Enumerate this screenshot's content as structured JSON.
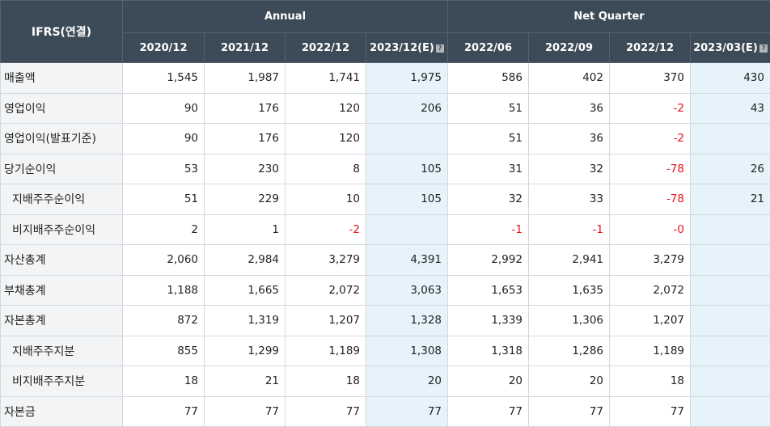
{
  "table": {
    "corner_label": "IFRS(연결)",
    "groups": {
      "annual": "Annual",
      "quarter": "Net Quarter"
    },
    "columns": [
      {
        "label": "2020/12",
        "est": false
      },
      {
        "label": "2021/12",
        "est": false
      },
      {
        "label": "2022/12",
        "est": false
      },
      {
        "label": "2023/12(E)",
        "est": true
      },
      {
        "label": "2022/06",
        "est": false
      },
      {
        "label": "2022/09",
        "est": false
      },
      {
        "label": "2022/12",
        "est": false
      },
      {
        "label": "2023/03(E)",
        "est": true
      }
    ],
    "est_icon_glyph": "?",
    "rows": [
      {
        "label": "매출액",
        "indent": false,
        "values": [
          "1,545",
          "1,987",
          "1,741",
          "1,975",
          "586",
          "402",
          "370",
          "430"
        ]
      },
      {
        "label": "영업이익",
        "indent": false,
        "values": [
          "90",
          "176",
          "120",
          "206",
          "51",
          "36",
          "-2",
          "43"
        ]
      },
      {
        "label": "영업이익(발표기준)",
        "indent": false,
        "values": [
          "90",
          "176",
          "120",
          "",
          "51",
          "36",
          "-2",
          ""
        ]
      },
      {
        "label": "당기순이익",
        "indent": false,
        "values": [
          "53",
          "230",
          "8",
          "105",
          "31",
          "32",
          "-78",
          "26"
        ]
      },
      {
        "label": "지배주주순이익",
        "indent": true,
        "values": [
          "51",
          "229",
          "10",
          "105",
          "32",
          "33",
          "-78",
          "21"
        ]
      },
      {
        "label": "비지배주주순이익",
        "indent": true,
        "values": [
          "2",
          "1",
          "-2",
          "",
          "-1",
          "-1",
          "-0",
          ""
        ]
      },
      {
        "label": "자산총계",
        "indent": false,
        "values": [
          "2,060",
          "2,984",
          "3,279",
          "4,391",
          "2,992",
          "2,941",
          "3,279",
          ""
        ]
      },
      {
        "label": "부채총계",
        "indent": false,
        "values": [
          "1,188",
          "1,665",
          "2,072",
          "3,063",
          "1,653",
          "1,635",
          "2,072",
          ""
        ]
      },
      {
        "label": "자본총계",
        "indent": false,
        "values": [
          "872",
          "1,319",
          "1,207",
          "1,328",
          "1,339",
          "1,306",
          "1,207",
          ""
        ]
      },
      {
        "label": "지배주주지분",
        "indent": true,
        "values": [
          "855",
          "1,299",
          "1,189",
          "1,308",
          "1,318",
          "1,286",
          "1,189",
          ""
        ]
      },
      {
        "label": "비지배주주지분",
        "indent": true,
        "values": [
          "18",
          "21",
          "18",
          "20",
          "20",
          "20",
          "18",
          ""
        ]
      },
      {
        "label": "자본금",
        "indent": false,
        "values": [
          "77",
          "77",
          "77",
          "77",
          "77",
          "77",
          "77",
          ""
        ]
      }
    ],
    "colors": {
      "header_bg": "#3d4a57",
      "label_bg": "#f2f4f6",
      "estimate_bg": "#e6f3fa",
      "negative": "#e8131a"
    }
  }
}
